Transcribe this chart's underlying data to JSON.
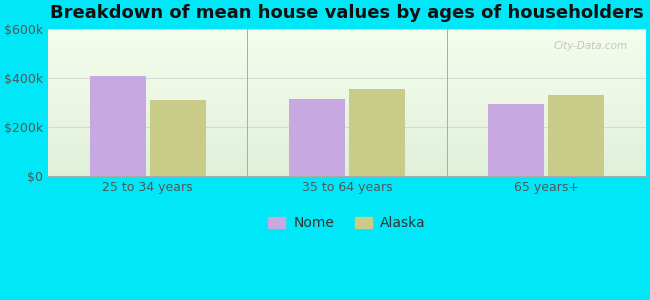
{
  "title": "Breakdown of mean house values by ages of householders",
  "categories": [
    "25 to 34 years",
    "35 to 64 years",
    "65 years+"
  ],
  "nome_values": [
    410000,
    315000,
    295000
  ],
  "alaska_values": [
    310000,
    355000,
    330000
  ],
  "ylim": [
    0,
    600000
  ],
  "yticks": [
    0,
    200000,
    400000,
    600000
  ],
  "ytick_labels": [
    "$0",
    "$200k",
    "$400k",
    "$600k"
  ],
  "bar_color_nome": "#c8a8e0",
  "bar_color_alaska": "#c8cc88",
  "background_outer": "#00e8f8",
  "legend_nome": "Nome",
  "legend_alaska": "Alaska",
  "bar_width": 0.28,
  "title_fontsize": 13,
  "tick_fontsize": 9,
  "legend_fontsize": 10,
  "watermark": "City-Data.com"
}
